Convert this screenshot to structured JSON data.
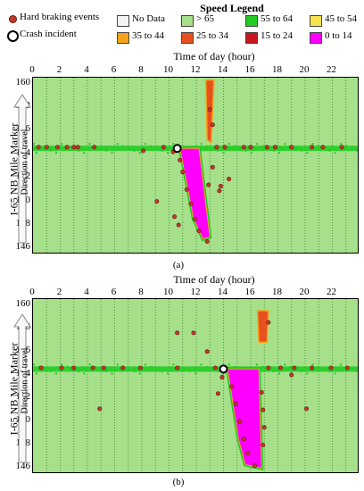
{
  "legend": {
    "title": "Speed Legend",
    "markers": [
      {
        "label": "Hard braking events",
        "color": "#c0392b"
      },
      {
        "label": "Crash incident",
        "color": "#ffffff"
      }
    ],
    "speed_bins": [
      {
        "label": "No Data",
        "color": "#f2f2f2"
      },
      {
        "label": "> 65",
        "color": "#a6e08a"
      },
      {
        "label": "55 to 64",
        "color": "#22cc22"
      },
      {
        "label": "45 to 54",
        "color": "#f5e34b"
      },
      {
        "label": "35 to 44",
        "color": "#f5a21a"
      },
      {
        "label": "25 to 34",
        "color": "#e8501e"
      },
      {
        "label": "15 to 24",
        "color": "#c8141e"
      },
      {
        "label": "0 to 14",
        "color": "#ff00ff"
      }
    ]
  },
  "chart_data": [
    {
      "type": "heatmap",
      "panel": "(a)",
      "xlabel": "Time of day (hour)",
      "ylabel": "I-65 NB Mile Marker",
      "annotation": "Direction of travel",
      "xlim": [
        0,
        24
      ],
      "ylim": [
        145.5,
        160.5
      ],
      "x_ticks": [
        0,
        2,
        4,
        6,
        8,
        10,
        12,
        14,
        16,
        18,
        20,
        22
      ],
      "y_ticks": [
        146,
        148,
        150,
        152,
        154,
        156,
        158,
        160
      ],
      "crash": {
        "time": 10.6,
        "mile": 154.5
      },
      "congestion_region": {
        "speed_bin": "0 to 14",
        "polygon": [
          [
            10.8,
            154.5
          ],
          [
            12.2,
            154.5
          ],
          [
            13.0,
            147.0
          ],
          [
            12.5,
            146.8
          ],
          [
            11.8,
            148.5
          ]
        ]
      },
      "slow_region": {
        "speed_bin": "25 to 34",
        "polygon": [
          [
            12.7,
            160.3
          ],
          [
            13.3,
            160.3
          ],
          [
            13.1,
            155.0
          ],
          [
            12.8,
            155.2
          ]
        ]
      },
      "hard_braking_events": [
        [
          8.1,
          154.3
        ],
        [
          9.6,
          154.6
        ],
        [
          9.1,
          150.0
        ],
        [
          10.3,
          154.2
        ],
        [
          10.8,
          153.5
        ],
        [
          11.0,
          152.5
        ],
        [
          11.3,
          151.0
        ],
        [
          11.6,
          149.8
        ],
        [
          11.9,
          148.5
        ],
        [
          12.2,
          147.5
        ],
        [
          12.8,
          146.6
        ],
        [
          10.4,
          148.7
        ],
        [
          10.7,
          148.0
        ],
        [
          12.9,
          151.4
        ],
        [
          13.7,
          150.9
        ],
        [
          13.8,
          151.3
        ],
        [
          14.4,
          151.9
        ],
        [
          13.2,
          152.9
        ],
        [
          13.5,
          154.6
        ],
        [
          14.1,
          154.6
        ],
        [
          15.5,
          154.6
        ],
        [
          16.0,
          154.6
        ],
        [
          17.2,
          154.6
        ],
        [
          17.8,
          154.6
        ],
        [
          19.0,
          154.6
        ],
        [
          20.5,
          154.6
        ],
        [
          21.3,
          154.6
        ],
        [
          22.7,
          154.6
        ],
        [
          13.0,
          157.8
        ],
        [
          13.2,
          156.5
        ],
        [
          1.0,
          154.6
        ],
        [
          1.8,
          154.6
        ],
        [
          3.3,
          154.6
        ],
        [
          4.5,
          154.6
        ],
        [
          0.4,
          154.6
        ],
        [
          2.5,
          154.6
        ],
        [
          3.0,
          154.6
        ]
      ]
    },
    {
      "type": "heatmap",
      "panel": "(b)",
      "xlabel": "Time of day (hour)",
      "ylabel": "I-65 NB Mile Marker",
      "annotation": "Direction of travel",
      "xlim": [
        0,
        24
      ],
      "ylim": [
        145.5,
        160.5
      ],
      "x_ticks": [
        0,
        2,
        4,
        6,
        8,
        10,
        12,
        14,
        16,
        18,
        20,
        22
      ],
      "y_ticks": [
        146,
        148,
        150,
        152,
        154,
        156,
        158,
        160
      ],
      "crash": {
        "time": 14.0,
        "mile": 154.5
      },
      "congestion_region": {
        "speed_bin": "0 to 14",
        "polygon": [
          [
            14.3,
            154.5
          ],
          [
            16.6,
            154.5
          ],
          [
            16.8,
            146.0
          ],
          [
            15.6,
            146.3
          ],
          [
            15.1,
            148.5
          ]
        ]
      },
      "slow_region": {
        "speed_bin": "25 to 34",
        "polygon": [
          [
            16.5,
            159.5
          ],
          [
            17.3,
            159.5
          ],
          [
            17.2,
            156.8
          ],
          [
            16.6,
            156.8
          ]
        ]
      },
      "hard_braking_events": [
        [
          0.6,
          154.6
        ],
        [
          2.1,
          154.6
        ],
        [
          3.0,
          154.6
        ],
        [
          4.4,
          154.6
        ],
        [
          5.2,
          154.6
        ],
        [
          6.6,
          154.6
        ],
        [
          7.9,
          154.6
        ],
        [
          10.6,
          157.6
        ],
        [
          11.8,
          157.6
        ],
        [
          10.6,
          154.6
        ],
        [
          12.8,
          156.0
        ],
        [
          13.4,
          154.6
        ],
        [
          14.6,
          153.0
        ],
        [
          14.9,
          151.5
        ],
        [
          15.2,
          150.0
        ],
        [
          15.5,
          148.5
        ],
        [
          15.8,
          147.3
        ],
        [
          16.3,
          146.2
        ],
        [
          16.8,
          152.5
        ],
        [
          16.9,
          151.0
        ],
        [
          17.0,
          149.5
        ],
        [
          16.9,
          148.0
        ],
        [
          17.3,
          158.5
        ],
        [
          17.3,
          154.6
        ],
        [
          18.2,
          154.6
        ],
        [
          19.2,
          154.6
        ],
        [
          20.5,
          154.6
        ],
        [
          21.9,
          154.6
        ],
        [
          23.1,
          154.6
        ],
        [
          20.1,
          151.1
        ],
        [
          19.0,
          154.0
        ],
        [
          4.9,
          151.1
        ],
        [
          13.6,
          152.4
        ],
        [
          13.9,
          153.8
        ]
      ]
    }
  ]
}
